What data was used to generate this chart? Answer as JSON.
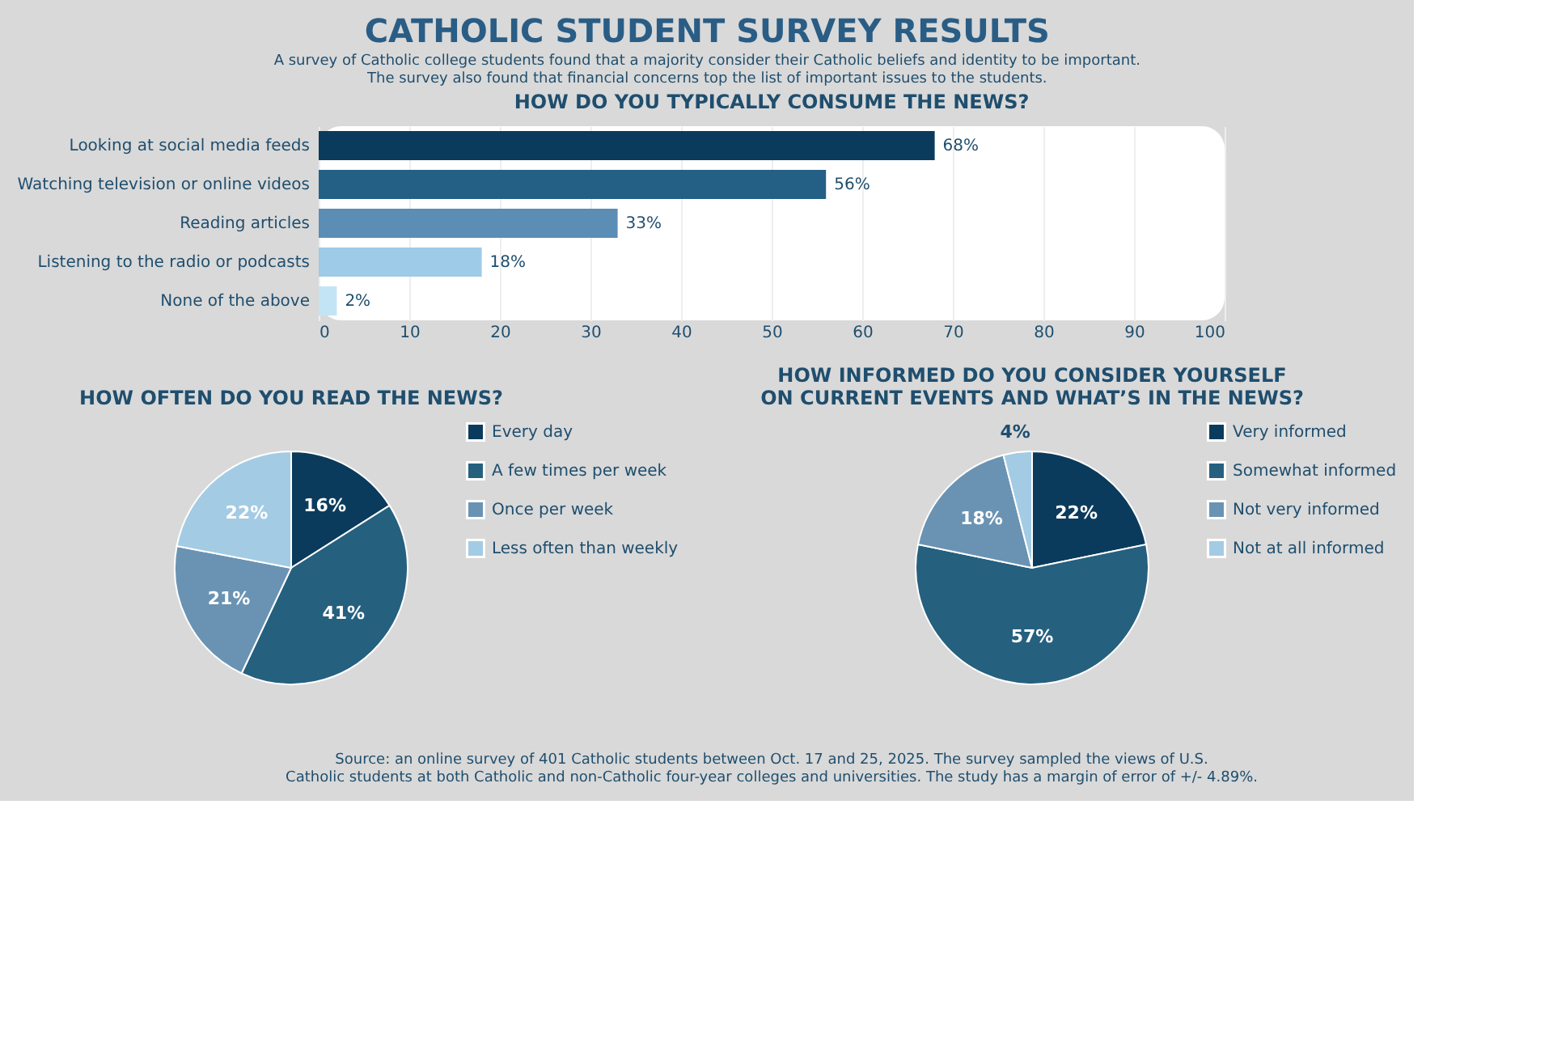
{
  "chart_data": [
    {
      "type": "bar",
      "orientation": "horizontal",
      "title": "CATHOLIC STUDENT SURVEY RESULTS",
      "subtitle": "A survey of Catholic college students found that a majority consider their Catholic beliefs and identity to be important.\nThe survey also found that financial concerns top the list of important issues to the students.",
      "annotations": [
        "HOW DO YOU TYPICALLY CONSUME THE NEWS?"
      ],
      "categories": [
        "Looking at social media feeds",
        "Watching television or online videos",
        "Reading articles",
        "Listening to the radio or podcasts",
        "None of the above"
      ],
      "values": [
        68,
        56,
        33,
        18,
        2
      ],
      "value_labels": [
        "68%",
        "56%",
        "33%",
        "18%",
        "2%"
      ],
      "colors": [
        "#0b3b5c",
        "#245f85",
        "#5b8db5",
        "#9ecbe8",
        "#c3e4f5"
      ],
      "xlim": [
        0,
        100
      ],
      "xticks": [
        0,
        10,
        20,
        30,
        40,
        50,
        60,
        70,
        80,
        90,
        100
      ],
      "grid": "x"
    },
    {
      "type": "pie",
      "title": "HOW OFTEN DO YOU READ THE NEWS?",
      "categories": [
        "Every day",
        "A few times per week",
        "Once per week",
        "Less often than weekly"
      ],
      "values": [
        16,
        41,
        21,
        22
      ],
      "value_labels": [
        "16%",
        "41%",
        "21%",
        "22%"
      ],
      "colors": [
        "#0b3b5c",
        "#25607f",
        "#6a93b3",
        "#a3cbe4"
      ],
      "legend": "right"
    },
    {
      "type": "pie",
      "title": "HOW INFORMED DO YOU CONSIDER YOURSELF\nON CURRENT EVENTS AND WHAT’S IN THE NEWS?",
      "categories": [
        "Very informed",
        "Somewhat informed",
        "Not very informed",
        "Not at all informed"
      ],
      "values": [
        22,
        57,
        18,
        4
      ],
      "value_labels": [
        "22%",
        "57%",
        "18%",
        "4%"
      ],
      "colors": [
        "#0b3b5c",
        "#25607f",
        "#6a93b3",
        "#a3cbe4"
      ],
      "legend": "right",
      "annotations": [
        "Source: an online survey of 401 Catholic students between Oct. 17 and 25, 2025. The survey sampled the views of U.S.\nCatholic students at both Catholic and non-Catholic four-year colleges and universities. The study has a margin of error of +/- 4.89%."
      ]
    }
  ]
}
